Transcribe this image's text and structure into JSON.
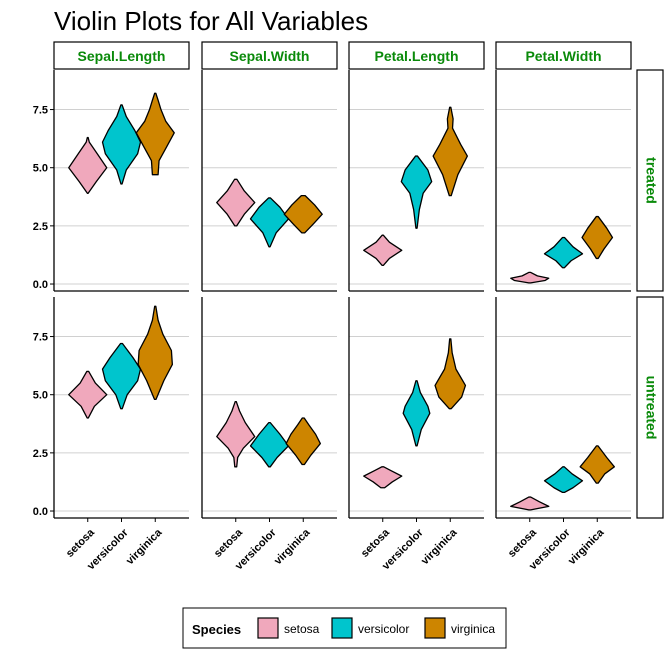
{
  "chart_data": {
    "type": "violin",
    "title": "Violin Plots for All Variables",
    "xlabel": "",
    "ylabel": "",
    "facet_columns": [
      "Sepal.Length",
      "Sepal.Width",
      "Petal.Length",
      "Petal.Width"
    ],
    "facet_rows": [
      "treated",
      "untreated"
    ],
    "categories": [
      "setosa",
      "versicolor",
      "virginica"
    ],
    "ylim": [
      -0.3,
      9.2
    ],
    "y_ticks": [
      0,
      2.5,
      5,
      7.5
    ],
    "y_tick_labels": [
      "0.0",
      "2.5",
      "5.0",
      "7.5"
    ],
    "grid": "horizontal",
    "legend": {
      "title": "Species",
      "position": "bottom",
      "entries": [
        {
          "name": "setosa",
          "color": "#f0a8bc"
        },
        {
          "name": "versicolor",
          "color": "#00c5cd"
        },
        {
          "name": "virginica",
          "color": "#cd8500"
        }
      ]
    },
    "panels": [
      {
        "row": "treated",
        "column": "Sepal.Length",
        "violins": [
          {
            "species": "setosa",
            "profile": [
              [
                3.9,
                0.02
              ],
              [
                4.4,
                0.45
              ],
              [
                5.0,
                1.0
              ],
              [
                5.6,
                0.5
              ],
              [
                6.1,
                0.08
              ],
              [
                6.3,
                0.02
              ]
            ]
          },
          {
            "species": "versicolor",
            "profile": [
              [
                4.3,
                0.03
              ],
              [
                4.9,
                0.25
              ],
              [
                5.6,
                0.85
              ],
              [
                6.1,
                1.0
              ],
              [
                6.6,
                0.7
              ],
              [
                7.2,
                0.25
              ],
              [
                7.7,
                0.03
              ]
            ]
          },
          {
            "species": "virginica",
            "profile": [
              [
                4.7,
                0.15
              ],
              [
                5.3,
                0.2
              ],
              [
                5.9,
                0.6
              ],
              [
                6.5,
                1.0
              ],
              [
                7.0,
                0.55
              ],
              [
                7.5,
                0.3
              ],
              [
                7.9,
                0.15
              ],
              [
                8.2,
                0.03
              ]
            ]
          }
        ]
      },
      {
        "row": "treated",
        "column": "Sepal.Width",
        "violins": [
          {
            "species": "setosa",
            "profile": [
              [
                2.5,
                0.05
              ],
              [
                3.0,
                0.45
              ],
              [
                3.5,
                1.0
              ],
              [
                4.0,
                0.45
              ],
              [
                4.5,
                0.06
              ]
            ]
          },
          {
            "species": "versicolor",
            "profile": [
              [
                1.6,
                0.03
              ],
              [
                2.2,
                0.35
              ],
              [
                2.8,
                1.0
              ],
              [
                3.3,
                0.55
              ],
              [
                3.7,
                0.05
              ]
            ]
          },
          {
            "species": "virginica",
            "profile": [
              [
                2.2,
                0.08
              ],
              [
                2.6,
                0.55
              ],
              [
                3.0,
                1.0
              ],
              [
                3.4,
                0.6
              ],
              [
                3.8,
                0.1
              ]
            ]
          }
        ]
      },
      {
        "row": "treated",
        "column": "Petal.Length",
        "violins": [
          {
            "species": "setosa",
            "profile": [
              [
                0.8,
                0.03
              ],
              [
                1.1,
                0.35
              ],
              [
                1.45,
                1.0
              ],
              [
                1.8,
                0.35
              ],
              [
                2.1,
                0.03
              ]
            ]
          },
          {
            "species": "versicolor",
            "profile": [
              [
                2.4,
                0.03
              ],
              [
                3.2,
                0.15
              ],
              [
                3.9,
                0.35
              ],
              [
                4.4,
                0.8
              ],
              [
                4.9,
                0.6
              ],
              [
                5.5,
                0.05
              ]
            ]
          },
          {
            "species": "virginica",
            "profile": [
              [
                3.8,
                0.05
              ],
              [
                4.7,
                0.4
              ],
              [
                5.5,
                0.9
              ],
              [
                6.0,
                0.55
              ],
              [
                6.7,
                0.12
              ],
              [
                7.1,
                0.15
              ],
              [
                7.6,
                0.03
              ]
            ]
          }
        ]
      },
      {
        "row": "treated",
        "column": "Petal.Width",
        "violins": [
          {
            "species": "setosa",
            "profile": [
              [
                0.05,
                0.05
              ],
              [
                0.15,
                0.8
              ],
              [
                0.25,
                1.0
              ],
              [
                0.35,
                0.4
              ],
              [
                0.5,
                0.05
              ]
            ]
          },
          {
            "species": "versicolor",
            "profile": [
              [
                0.7,
                0.05
              ],
              [
                1.0,
                0.4
              ],
              [
                1.3,
                1.0
              ],
              [
                1.6,
                0.5
              ],
              [
                2.0,
                0.05
              ]
            ]
          },
          {
            "species": "virginica",
            "profile": [
              [
                1.1,
                0.05
              ],
              [
                1.5,
                0.35
              ],
              [
                2.0,
                0.8
              ],
              [
                2.4,
                0.5
              ],
              [
                2.9,
                0.05
              ]
            ]
          }
        ]
      },
      {
        "row": "untreated",
        "column": "Sepal.Length",
        "violins": [
          {
            "species": "setosa",
            "profile": [
              [
                4.0,
                0.03
              ],
              [
                4.5,
                0.35
              ],
              [
                5.0,
                1.0
              ],
              [
                5.5,
                0.4
              ],
              [
                6.0,
                0.05
              ]
            ]
          },
          {
            "species": "versicolor",
            "profile": [
              [
                4.4,
                0.04
              ],
              [
                5.0,
                0.3
              ],
              [
                5.6,
                0.85
              ],
              [
                6.1,
                1.0
              ],
              [
                6.6,
                0.6
              ],
              [
                7.2,
                0.05
              ]
            ]
          },
          {
            "species": "virginica",
            "profile": [
              [
                4.8,
                0.04
              ],
              [
                5.6,
                0.45
              ],
              [
                6.3,
                0.9
              ],
              [
                6.9,
                0.85
              ],
              [
                7.6,
                0.4
              ],
              [
                8.2,
                0.15
              ],
              [
                8.8,
                0.03
              ]
            ]
          }
        ]
      },
      {
        "row": "untreated",
        "column": "Sepal.Width",
        "violins": [
          {
            "species": "setosa",
            "profile": [
              [
                1.9,
                0.05
              ],
              [
                2.3,
                0.1
              ],
              [
                2.7,
                0.4
              ],
              [
                3.2,
                1.0
              ],
              [
                3.8,
                0.5
              ],
              [
                4.3,
                0.2
              ],
              [
                4.7,
                0.03
              ]
            ]
          },
          {
            "species": "versicolor",
            "profile": [
              [
                1.9,
                0.04
              ],
              [
                2.3,
                0.4
              ],
              [
                2.8,
                1.0
              ],
              [
                3.3,
                0.55
              ],
              [
                3.8,
                0.04
              ]
            ]
          },
          {
            "species": "virginica",
            "profile": [
              [
                2.0,
                0.06
              ],
              [
                2.4,
                0.4
              ],
              [
                2.9,
                0.9
              ],
              [
                3.3,
                0.65
              ],
              [
                3.7,
                0.3
              ],
              [
                4.0,
                0.05
              ]
            ]
          }
        ]
      },
      {
        "row": "untreated",
        "column": "Petal.Length",
        "violins": [
          {
            "species": "setosa",
            "profile": [
              [
                1.0,
                0.1
              ],
              [
                1.25,
                0.5
              ],
              [
                1.5,
                1.0
              ],
              [
                1.75,
                0.4
              ],
              [
                1.9,
                0.05
              ]
            ]
          },
          {
            "species": "versicolor",
            "profile": [
              [
                2.8,
                0.03
              ],
              [
                3.5,
                0.25
              ],
              [
                4.2,
                0.7
              ],
              [
                4.5,
                0.6
              ],
              [
                5.1,
                0.2
              ],
              [
                5.6,
                0.03
              ]
            ]
          },
          {
            "species": "virginica",
            "profile": [
              [
                4.4,
                0.05
              ],
              [
                4.9,
                0.6
              ],
              [
                5.4,
                0.8
              ],
              [
                6.1,
                0.3
              ],
              [
                6.8,
                0.1
              ],
              [
                7.4,
                0.03
              ]
            ]
          }
        ]
      },
      {
        "row": "untreated",
        "column": "Petal.Width",
        "violins": [
          {
            "species": "setosa",
            "profile": [
              [
                0.05,
                0.05
              ],
              [
                0.2,
                1.0
              ],
              [
                0.4,
                0.5
              ],
              [
                0.6,
                0.05
              ]
            ]
          },
          {
            "species": "versicolor",
            "profile": [
              [
                0.8,
                0.05
              ],
              [
                1.0,
                0.5
              ],
              [
                1.3,
                1.0
              ],
              [
                1.6,
                0.45
              ],
              [
                1.9,
                0.04
              ]
            ]
          },
          {
            "species": "virginica",
            "profile": [
              [
                1.2,
                0.05
              ],
              [
                1.6,
                0.4
              ],
              [
                1.9,
                0.9
              ],
              [
                2.3,
                0.5
              ],
              [
                2.8,
                0.04
              ]
            ]
          }
        ]
      }
    ]
  }
}
